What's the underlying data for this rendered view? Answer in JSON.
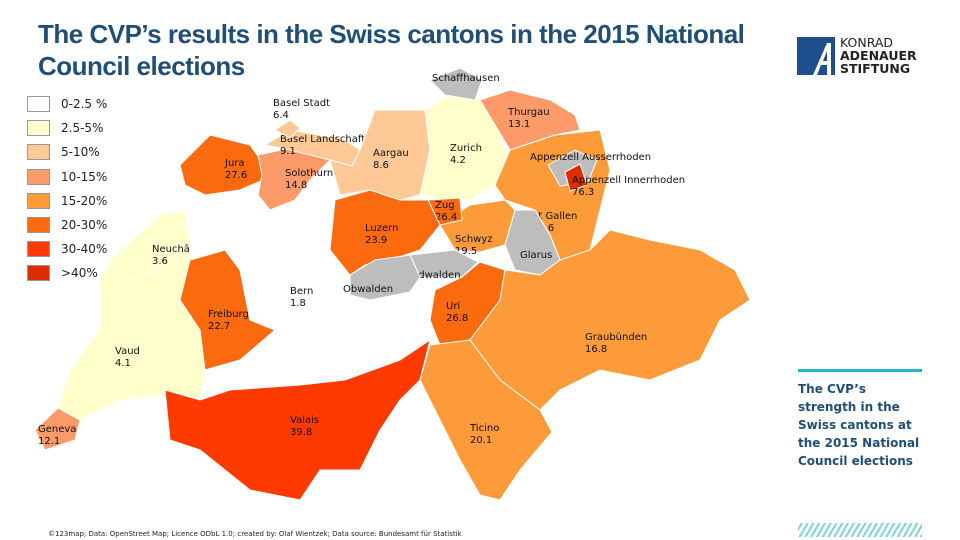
{
  "title": "The CVP’s results in the Swiss cantons in the 2015 National Council elections",
  "legend": [
    {
      "label": "0-2.5 %",
      "color": "#ffffff"
    },
    {
      "label": "2.5-5%",
      "color": "#ffffcc"
    },
    {
      "label": "5-10%",
      "color": "#fec996"
    },
    {
      "label": "10-15%",
      "color": "#fc9a6a"
    },
    {
      "label": "15-20%",
      "color": "#fd9b3a"
    },
    {
      "label": "20-30%",
      "color": "#fc6a10"
    },
    {
      "label": "30-40%",
      "color": "#ff3a00"
    },
    {
      "label": ">40%",
      "color": "#dd2c00"
    }
  ],
  "no_data_color": "#bdbdbd",
  "cantons": [
    {
      "name": "Geneva",
      "value": "12.1"
    },
    {
      "name": "Vaud",
      "value": "4.1"
    },
    {
      "name": "Neuchâtel",
      "value": "3.6"
    },
    {
      "name": "Freiburg",
      "value": "22.7"
    },
    {
      "name": "Jura",
      "value": "27.6"
    },
    {
      "name": "Bern",
      "value": "1.8"
    },
    {
      "name": "Valais",
      "value": "39.8"
    },
    {
      "name": "Solothurn",
      "value": "14.8"
    },
    {
      "name": "Basel Landschaft",
      "value": "9.1"
    },
    {
      "name": "Basel Stadt",
      "value": "6.4"
    },
    {
      "name": "Aargau",
      "value": "8.6"
    },
    {
      "name": "Zurich",
      "value": "4.2"
    },
    {
      "name": "Schaffhausen",
      "value": ""
    },
    {
      "name": "Thurgau",
      "value": "13.1"
    },
    {
      "name": "St  Gallen",
      "value": "16.6"
    },
    {
      "name": "Appenzell Ausserrhoden",
      "value": ""
    },
    {
      "name": "Appenzell Innerrhoden",
      "value": "76.3"
    },
    {
      "name": "Glarus",
      "value": ""
    },
    {
      "name": "Schwyz",
      "value": "19.5"
    },
    {
      "name": "Zug",
      "value": "26.4"
    },
    {
      "name": "Luzern",
      "value": "23.9"
    },
    {
      "name": "Nidwalden",
      "value": ""
    },
    {
      "name": "Obwalden",
      "value": ""
    },
    {
      "name": "Uri",
      "value": "26.8"
    },
    {
      "name": "Graubünden",
      "value": "16.8"
    },
    {
      "name": "Ticino",
      "value": "20.1"
    }
  ],
  "logo": {
    "line1": "KONRAD",
    "line2": "ADENAUER",
    "line3": "STIFTUNG",
    "color": "#1f4e8c"
  },
  "side_text": "The CVP’s strength in the Swiss cantons at the 2015 National Council elections",
  "credit": "©123map; Data: OpenStreet  Map; Licence ODbL 1.0; created by: Olaf Wientzek; Data source: Bundesamt für Statistik"
}
